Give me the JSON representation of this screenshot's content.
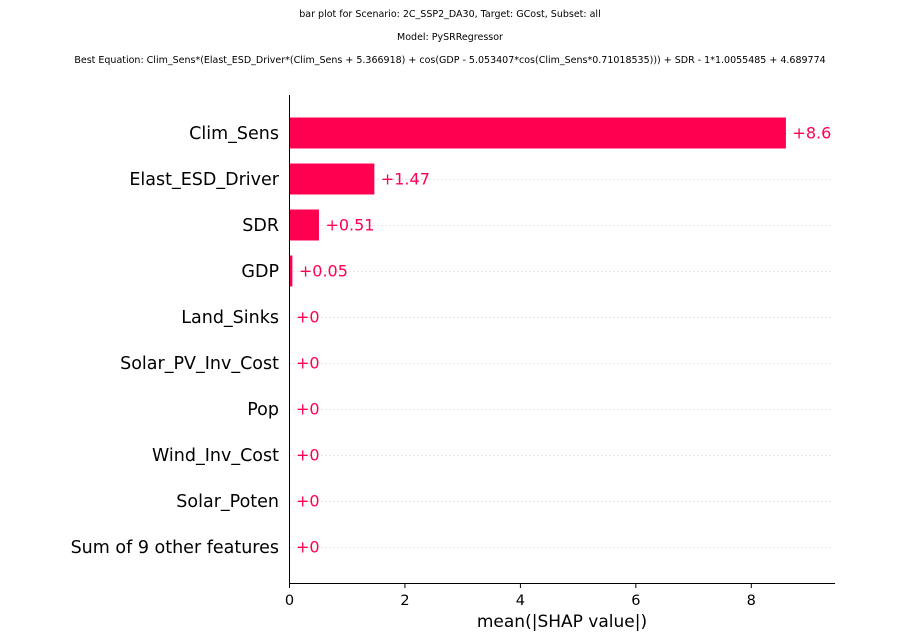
{
  "header": {
    "line1": "bar plot for Scenario: 2C_SSP2_DA30, Target: GCost, Subset: all",
    "line2": "Model: PySRRegressor",
    "line3": "Best Equation: Clim_Sens*(Elast_ESD_Driver*(Clim_Sens + 5.366918) + cos(GDP - 5.053407*cos(Clim_Sens*0.71018535))) + SDR - 1*1.0055485 + 4.689774"
  },
  "chart_data": {
    "type": "bar",
    "orientation": "horizontal",
    "categories": [
      "Clim_Sens",
      "Elast_ESD_Driver",
      "SDR",
      "GDP",
      "Land_Sinks",
      "Solar_PV_Inv_Cost",
      "Pop",
      "Wind_Inv_Cost",
      "Solar_Poten",
      "Sum of 9 other features"
    ],
    "values": [
      8.6,
      1.47,
      0.51,
      0.05,
      0,
      0,
      0,
      0,
      0,
      0
    ],
    "value_labels": [
      "+8.6",
      "+1.47",
      "+0.51",
      "+0.05",
      "+0",
      "+0",
      "+0",
      "+0",
      "+0",
      "+0"
    ],
    "xlabel": "mean(|SHAP value|)",
    "xlim": [
      0,
      9.45
    ],
    "xticks": [
      0,
      2,
      4,
      6,
      8
    ],
    "xtick_labels": [
      "0",
      "2",
      "4",
      "6",
      "8"
    ],
    "bar_color": "#ff0051",
    "label_color": "#ff0051",
    "gridlines": "dotted horizontal per category"
  }
}
